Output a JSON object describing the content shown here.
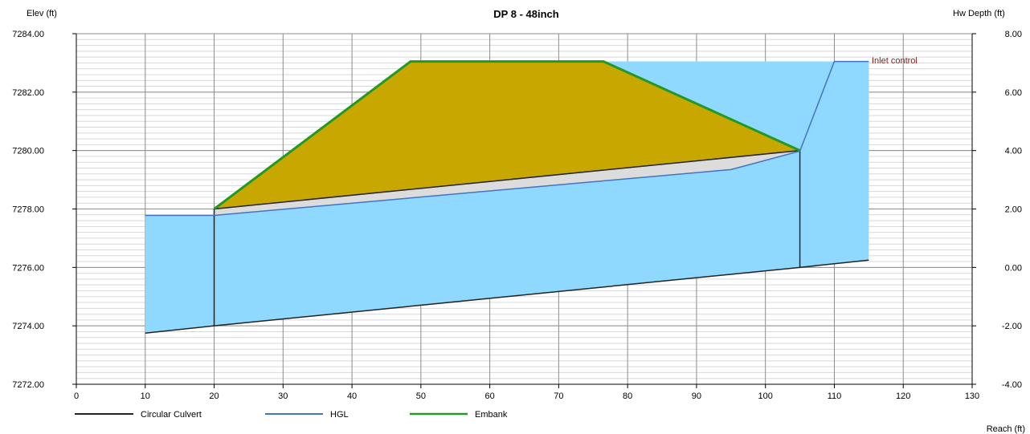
{
  "chart_data": {
    "type": "line",
    "title": "DP 8 - 48inch",
    "ylabel": "Elev (ft)",
    "y2label": "Hw Depth (ft)",
    "xlabel": "Reach (ft)",
    "xlim": [
      0,
      130
    ],
    "ylim": [
      7272,
      7284
    ],
    "y2lim": [
      -4,
      8
    ],
    "x_ticks": [
      0,
      10,
      20,
      30,
      40,
      50,
      60,
      70,
      80,
      90,
      100,
      110,
      120,
      130
    ],
    "y_ticks": [
      "7272.00",
      "7274.00",
      "7276.00",
      "7278.00",
      "7280.00",
      "7282.00",
      "7284.00"
    ],
    "y2_ticks": [
      "-4.00",
      "-2.00",
      "0.00",
      "2.00",
      "4.00",
      "6.00",
      "8.00"
    ],
    "grid": true,
    "legend_position": "bottom-left",
    "colors": {
      "water": "#8fd8ff",
      "embankment": "#c8a800",
      "pipe_interior": "#dcdcdc",
      "culvert": "#222222",
      "hgl": "#4472c4",
      "embank": "#229922",
      "annotation": "#8b1a1a"
    },
    "series": [
      {
        "name": "Circular Culvert",
        "color": "#222222",
        "invert": {
          "x": [
            10,
            20,
            105,
            115
          ],
          "y": [
            7273.75,
            7274.0,
            7276.0,
            7276.25
          ]
        },
        "crown": {
          "x": [
            20,
            105
          ],
          "y": [
            7278.0,
            7280.0
          ]
        }
      },
      {
        "name": "HGL",
        "color": "#4472c4",
        "x": [
          10,
          20,
          95,
          105,
          110,
          115
        ],
        "y": [
          7277.78,
          7277.78,
          7279.35,
          7279.98,
          7283.05,
          7283.05
        ]
      },
      {
        "name": "Embank",
        "color": "#229922",
        "x": [
          20,
          48.5,
          76.5,
          105
        ],
        "y": [
          7278.0,
          7283.05,
          7283.05,
          7280.0
        ]
      }
    ],
    "annotations": [
      {
        "text": "Inlet control",
        "x": 115,
        "y": 7283.05
      }
    ]
  }
}
